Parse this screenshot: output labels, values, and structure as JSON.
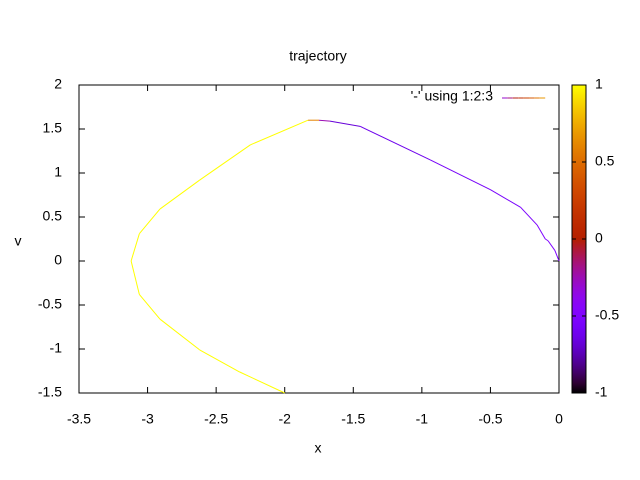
{
  "chart_data": {
    "type": "line",
    "title": "trajectory",
    "x_label": "x",
    "y_label": "v",
    "x": [
      0,
      -0.03,
      -0.08,
      -0.1,
      -0.16,
      -0.28,
      -0.5,
      -0.94,
      -1.45,
      -1.67,
      -1.75,
      -1.83,
      -2.25,
      -2.62,
      -2.91,
      -3.06,
      -3.12,
      -3.06,
      -2.91,
      -2.62,
      -2.33,
      -2
    ],
    "series": [
      {
        "name": "'-' using 1:2:3",
        "values": [
          0,
          0.12,
          0.23,
          0.25,
          0.41,
          0.61,
          0.81,
          1.15,
          1.53,
          1.59,
          1.6,
          1.6,
          1.32,
          0.92,
          0.59,
          0.31,
          0,
          -0.38,
          -0.66,
          -1.01,
          -1.26,
          -1.5
        ],
        "color_values": [
          -0.5,
          -0.5,
          -0.5,
          -0.5,
          -0.52,
          -0.55,
          -0.55,
          -0.6,
          -0.65,
          -0.7,
          0.2,
          1,
          1,
          1,
          1,
          1,
          1,
          1,
          1,
          1,
          1,
          1
        ]
      }
    ],
    "xlim": [
      -3.5,
      0
    ],
    "xticks": [
      -3.5,
      -3,
      -2.5,
      -2,
      -1.5,
      -1,
      -0.5,
      0
    ],
    "ylim": [
      -1.5,
      2
    ],
    "yticks": [
      -1.5,
      -1,
      -0.5,
      0,
      0.5,
      1,
      1.5,
      2
    ],
    "cblim": [
      -1,
      1
    ],
    "cbticks": [
      -1,
      -0.5,
      0,
      0.5,
      1
    ],
    "legend": "top right"
  }
}
